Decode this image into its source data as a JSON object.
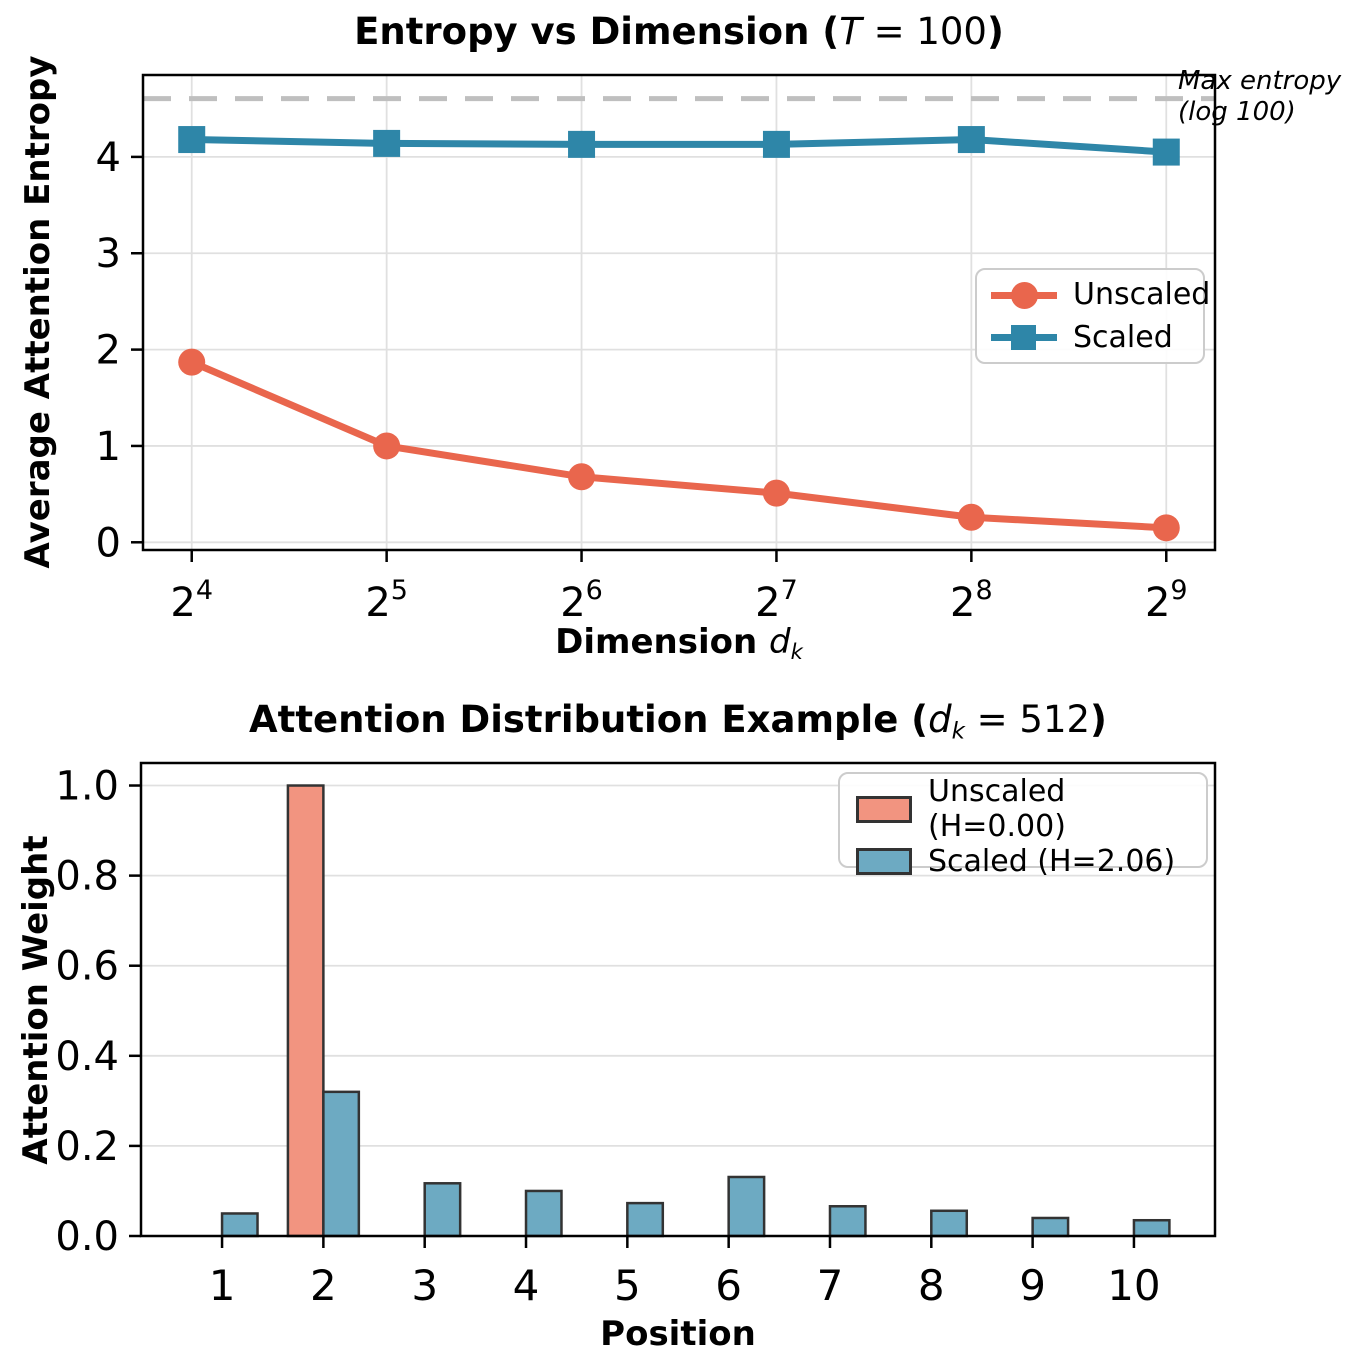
{
  "figure": {
    "background": "#ffffff"
  },
  "colors": {
    "unscaled_line": "#E9664D",
    "scaled_line": "#2E86A8",
    "unscaled_fill": "#F29480",
    "scaled_fill": "#6DAAC2",
    "bar_edge": "#333333",
    "grid": "#E0E0E0",
    "ref_dash": "#BFBFBF",
    "axis": "#000000",
    "legend_border": "#CCCCCC"
  },
  "top_chart_labels": {
    "title_prefix": "Entropy vs Dimension (",
    "title_var": "T",
    "title_mid": " = 100",
    "title_suffix": ")",
    "ylabel": "Average Attention Entropy",
    "xlabel_prefix": "Dimension ",
    "xlabel_var": "d",
    "xlabel_sub": "k"
  },
  "bottom_chart_labels": {
    "title_prefix": "Attention Distribution Example (",
    "title_var": "d",
    "title_sub": "k",
    "title_mid": " = 512",
    "title_suffix": ")",
    "ylabel": "Attention Weight",
    "xlabel": "Position"
  },
  "annotation": {
    "line1": "Max entropy",
    "line2": "(log 100)"
  },
  "chart_data": [
    {
      "type": "line",
      "title": "Entropy vs Dimension (T = 100)",
      "xlabel": "Dimension d_k",
      "ylabel": "Average Attention Entropy",
      "x_exponent_base": "2",
      "x_exponents": [
        4,
        5,
        6,
        7,
        8,
        9
      ],
      "x": [
        4,
        5,
        6,
        7,
        8,
        9
      ],
      "series": [
        {
          "name": "Unscaled",
          "marker": "circle",
          "color": "#E9664D",
          "values": [
            1.87,
            1.0,
            0.68,
            0.51,
            0.26,
            0.15
          ]
        },
        {
          "name": "Scaled",
          "marker": "square",
          "color": "#2E86A8",
          "values": [
            4.18,
            4.14,
            4.13,
            4.13,
            4.18,
            4.05
          ]
        }
      ],
      "y_ticks": [
        0,
        1,
        2,
        3,
        4
      ],
      "xlim": [
        3.75,
        9.25
      ],
      "ylim": [
        -0.08,
        4.85
      ],
      "grid": "both",
      "legend_loc": "center right",
      "ref_line": {
        "value": 4.605,
        "label": "Max entropy (log 100)",
        "style": "dashed",
        "color": "#BFBFBF"
      }
    },
    {
      "type": "bar",
      "title": "Attention Distribution Example (d_k = 512)",
      "xlabel": "Position",
      "ylabel": "Attention Weight",
      "categories": [
        1,
        2,
        3,
        4,
        5,
        6,
        7,
        8,
        9,
        10
      ],
      "series": [
        {
          "name": "Unscaled (H=0.00)",
          "color": "#F29480",
          "edge": "#333333",
          "values": [
            0,
            1.0,
            0,
            0,
            0,
            0,
            0,
            0,
            0,
            0
          ]
        },
        {
          "name": "Scaled (H=2.06)",
          "color": "#6DAAC2",
          "edge": "#333333",
          "values": [
            0.05,
            0.32,
            0.117,
            0.1,
            0.073,
            0.131,
            0.066,
            0.056,
            0.04,
            0.035
          ]
        }
      ],
      "y_ticks": [
        0.0,
        0.2,
        0.4,
        0.6,
        0.8,
        1.0
      ],
      "y_tick_labels": [
        "0.0",
        "0.2",
        "0.4",
        "0.6",
        "0.8",
        "1.0"
      ],
      "xlim": [
        0.2,
        10.8
      ],
      "ylim": [
        0,
        1.05
      ],
      "bar_width": 0.35,
      "grid": "y",
      "legend_loc": "upper right"
    }
  ]
}
